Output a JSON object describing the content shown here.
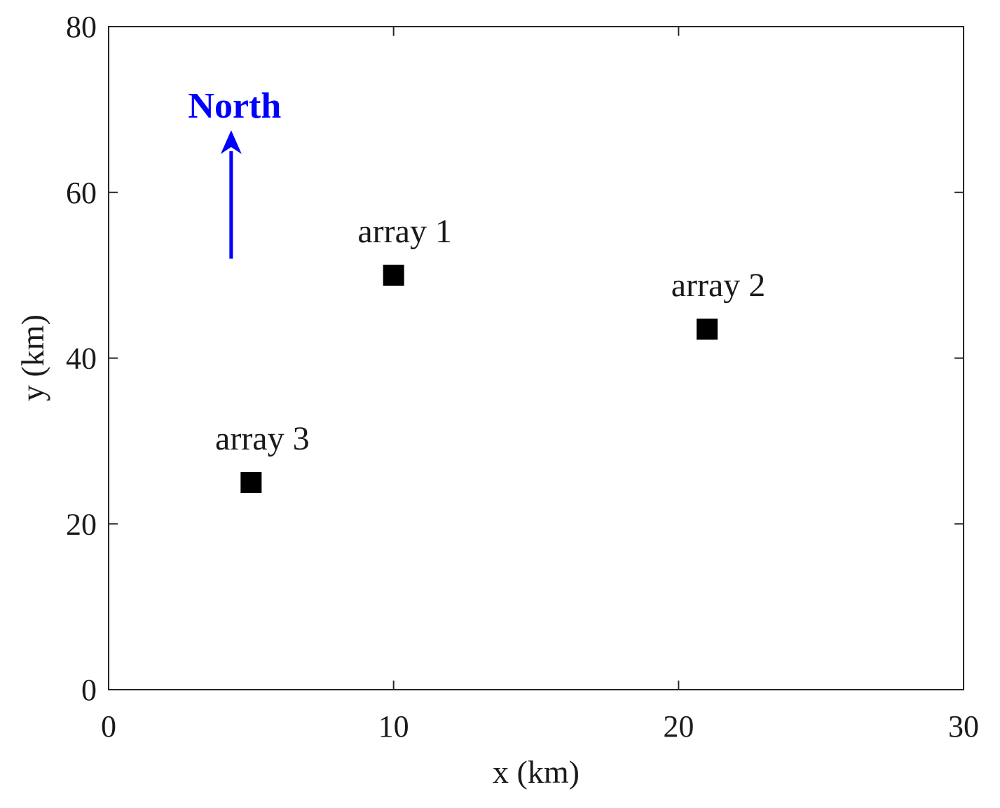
{
  "chart_data": {
    "type": "scatter",
    "xlabel": "x (km)",
    "ylabel": "y (km)",
    "xlim": [
      0,
      30
    ],
    "ylim": [
      0,
      80
    ],
    "x_ticks": [
      0,
      10,
      20,
      30
    ],
    "y_ticks": [
      0,
      20,
      40,
      60,
      80
    ],
    "grid": false,
    "marker": "square",
    "marker_color": "#000000",
    "points": [
      {
        "label": "array 1",
        "x": 10,
        "y": 50
      },
      {
        "label": "array 2",
        "x": 21,
        "y": 43.5
      },
      {
        "label": "array 3",
        "x": 5,
        "y": 25
      }
    ],
    "annotation": {
      "text": "North",
      "color": "#0000ff",
      "arrow": {
        "x": 4.3,
        "y_start": 52,
        "y_end": 67.5
      }
    }
  }
}
